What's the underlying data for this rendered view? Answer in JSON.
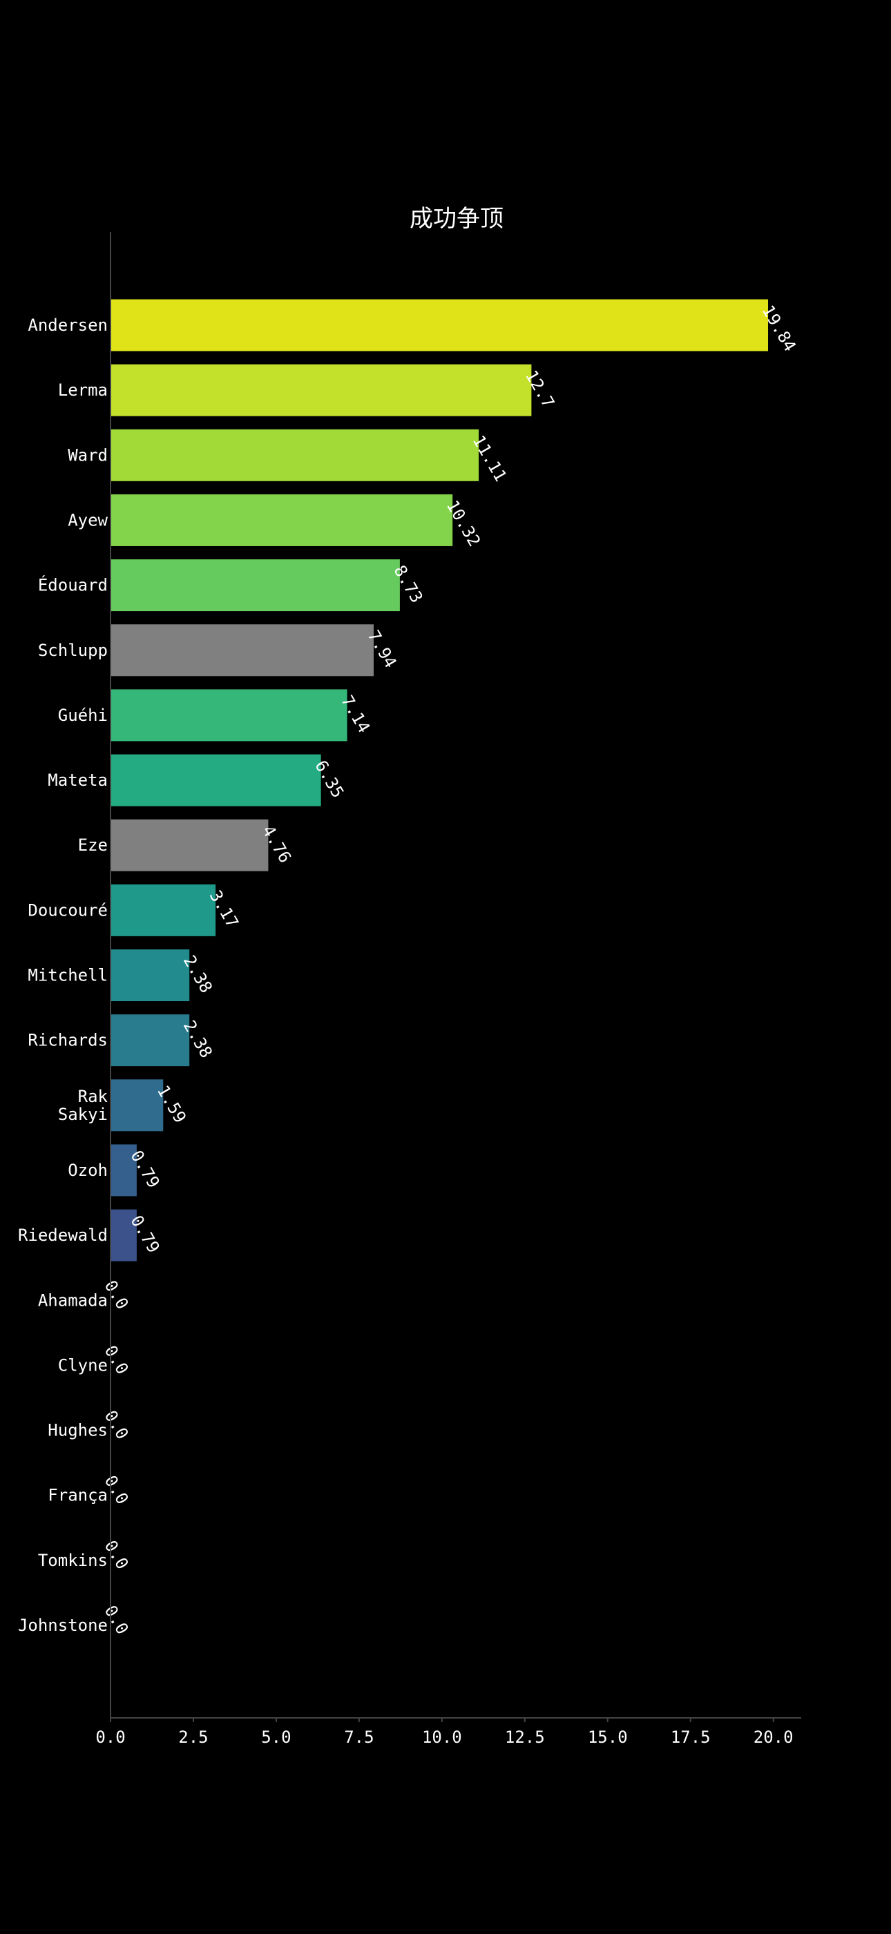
{
  "chart_data": {
    "type": "bar",
    "orientation": "horizontal",
    "title": "成功争顶",
    "xlabel": "",
    "ylabel": "",
    "xlim": [
      0,
      20.84
    ],
    "xticks": [
      "0.0",
      "2.5",
      "5.0",
      "7.5",
      "10.0",
      "12.5",
      "15.0",
      "17.5",
      "20.0"
    ],
    "grid": false,
    "background": "#000000",
    "categories": [
      "Andersen",
      "Lerma",
      "Ward",
      "Ayew",
      "Édouard",
      "Schlupp",
      "Guéhi",
      "Mateta",
      "Eze",
      "Doucouré",
      "Mitchell",
      "Richards",
      "Rak\nSakyi",
      "Ozoh",
      "Riedewald",
      "Ahamada",
      "Clyne",
      "Hughes",
      "França",
      "Tomkins",
      "Johnstone"
    ],
    "values": [
      19.84,
      12.7,
      11.11,
      10.32,
      8.73,
      7.94,
      7.14,
      6.35,
      4.76,
      3.17,
      2.38,
      2.38,
      1.59,
      0.79,
      0.79,
      0.0,
      0.0,
      0.0,
      0.0,
      0.0,
      0.0
    ],
    "value_labels": [
      "19.84",
      "12.7",
      "11.11",
      "10.32",
      "8.73",
      "7.94",
      "7.14",
      "6.35",
      "4.76",
      "3.17",
      "2.38",
      "2.38",
      "1.59",
      "0.79",
      "0.79",
      "0.0",
      "0.0",
      "0.0",
      "0.0",
      "0.0",
      "0.0"
    ],
    "colors": [
      "#e1e319",
      "#c3e02a",
      "#a2da37",
      "#84d44b",
      "#65cb5e",
      "#808080",
      "#35b779",
      "#25ab82",
      "#808080",
      "#1f9a8a",
      "#228b8d",
      "#297b8e",
      "#2f6c8e",
      "#355f8d",
      "#3b528b",
      "#424086",
      "#472e7c",
      "#48186a",
      "#440154",
      "#440154",
      "#440154"
    ]
  }
}
